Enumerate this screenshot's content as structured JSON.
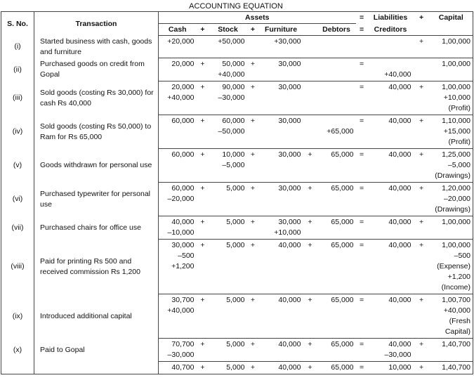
{
  "title": "ACCOUNTING EQUATION",
  "header": {
    "sno": "S. No.",
    "transaction": "Transaction",
    "assets": "Assets",
    "eq": "=",
    "liabilities": "Liabilities",
    "plus": "+",
    "capital": "Capital",
    "cash": "Cash",
    "plus1": "+",
    "stock": "Stock",
    "plus2": "+",
    "furniture": "Furniture",
    "debtors": "Debtors",
    "eq2": "=",
    "creditors": "Creditors"
  },
  "rows": [
    {
      "sno": "(i)",
      "transaction": "Started business with cash, goods and furniture",
      "cash": [
        "+20,000"
      ],
      "stock": [
        "+50,000"
      ],
      "furniture": [
        "+30,000"
      ],
      "p4": "+",
      "capital": [
        "1,00,000"
      ]
    },
    {
      "sno": "(ii)",
      "transaction": "Purchased goods on credit from Gopal",
      "cash": [
        "20,000"
      ],
      "p1": "+",
      "stock": [
        "50,000",
        "+40,000"
      ],
      "p2": "+",
      "furniture": [
        "30,000"
      ],
      "eq": "=",
      "creditors": [
        "",
        "+40,000"
      ],
      "capital": [
        "1,00,000"
      ]
    },
    {
      "sno": "(iii)",
      "transaction": "Sold goods (costing Rs 30,000) for cash Rs 40,000",
      "cash": [
        "20,000",
        "+40,000"
      ],
      "p1": "+",
      "stock": [
        "90,000",
        "–30,000"
      ],
      "p2": "+",
      "furniture": [
        "30,000"
      ],
      "eq": "=",
      "creditors": [
        "40,000"
      ],
      "p4": "+",
      "capital": [
        "1,00,000",
        "+10,000",
        "(Profit)"
      ]
    },
    {
      "sno": "(iv)",
      "transaction": "Sold goods (costing Rs 50,000) to Ram for Rs 65,000",
      "cash": [
        "60,000"
      ],
      "p1": "+",
      "stock": [
        "60,000",
        "–50,000"
      ],
      "p2": "+",
      "furniture": [
        "30,000"
      ],
      "debtors": [
        "",
        "+65,000"
      ],
      "eq": "=",
      "creditors": [
        "40,000"
      ],
      "p4": "+",
      "capital": [
        "1,10,000",
        "+15,000",
        "(Profit)"
      ]
    },
    {
      "sno": "(v)",
      "transaction": "Goods withdrawn for personal use",
      "cash": [
        "60,000"
      ],
      "p1": "+",
      "stock": [
        "10,000",
        "–5,000"
      ],
      "p2": "+",
      "furniture": [
        "30,000"
      ],
      "p3": "+",
      "debtors": [
        "65,000"
      ],
      "eq": "=",
      "creditors": [
        "40,000"
      ],
      "p4": "+",
      "capital": [
        "1,25,000",
        "–5,000",
        "(Drawings)"
      ]
    },
    {
      "sno": "(vi)",
      "transaction": "Purchased typewriter for personal use",
      "cash": [
        "60,000",
        "–20,000"
      ],
      "p1": "+",
      "stock": [
        "5,000"
      ],
      "p2": "+",
      "furniture": [
        "30,000"
      ],
      "p3": "+",
      "debtors": [
        "65,000"
      ],
      "eq": "=",
      "creditors": [
        "40,000"
      ],
      "p4": "+",
      "capital": [
        "1,20,000",
        "–20,000",
        "(Drawings)"
      ]
    },
    {
      "sno": "(vii)",
      "transaction": "Purchased chairs for office use",
      "cash": [
        "40,000",
        "–10,000"
      ],
      "p1": "+",
      "stock": [
        "5,000"
      ],
      "p2": "+",
      "furniture": [
        "30,000",
        "+10,000"
      ],
      "p3": "+",
      "debtors": [
        "65,000"
      ],
      "eq": "=",
      "creditors": [
        "40,000"
      ],
      "p4": "+",
      "capital": [
        "1,00,000"
      ]
    },
    {
      "sno": "(viii)",
      "transaction": "Paid for printing Rs 500 and received commission Rs 1,200",
      "cash": [
        "30,000",
        "–500",
        "+1,200"
      ],
      "p1": "+",
      "stock": [
        "5,000"
      ],
      "p2": "+",
      "furniture": [
        "40,000"
      ],
      "p3": "+",
      "debtors": [
        "65,000"
      ],
      "eq": "=",
      "creditors": [
        "40,000"
      ],
      "p4": "+",
      "capital": [
        "1,00,000",
        "–500",
        "(Expense)",
        "+1,200",
        "(Income)"
      ]
    },
    {
      "sno": "(ix)",
      "transaction": "Introduced additional capital",
      "cash": [
        "30,700",
        "+40,000"
      ],
      "p1": "+",
      "stock": [
        "5,000"
      ],
      "p2": "+",
      "furniture": [
        "40,000"
      ],
      "p3": "+",
      "debtors": [
        "65,000"
      ],
      "eq": "=",
      "creditors": [
        "40,000"
      ],
      "p4": "+",
      "capital": [
        "1,00,700",
        "+40,000",
        "(Fresh",
        "Capital)"
      ]
    },
    {
      "sno": "(x)",
      "transaction": "Paid to Gopal",
      "cash": [
        "70,700",
        "–30,000"
      ],
      "p1": "+",
      "stock": [
        "5,000"
      ],
      "p2": "+",
      "furniture": [
        "40,000"
      ],
      "p3": "+",
      "debtors": [
        "65,000"
      ],
      "eq": "=",
      "creditors": [
        "40,000",
        "–30,000"
      ],
      "p4": "+",
      "capital": [
        "1,40,700"
      ]
    },
    {
      "cash": [
        "40,700"
      ],
      "p1": "+",
      "stock": [
        "5,000"
      ],
      "p2": "+",
      "furniture": [
        "40,000"
      ],
      "p3": "+",
      "debtors": [
        "65,000"
      ],
      "eq": "=",
      "creditors": [
        "10,000"
      ],
      "p4": "+",
      "capital": [
        "1,40,700"
      ]
    }
  ]
}
